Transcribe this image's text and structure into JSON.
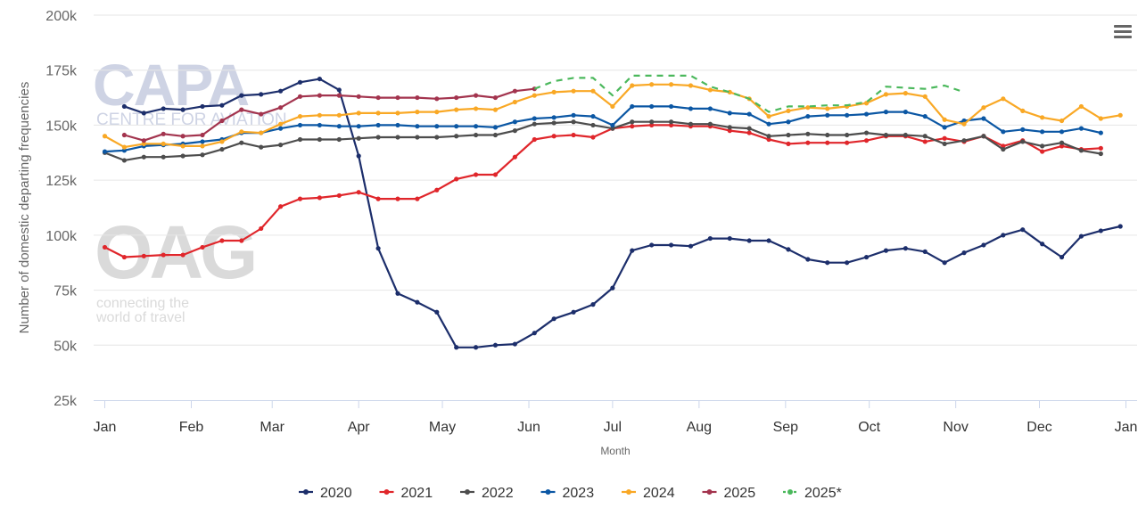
{
  "chart_data": {
    "type": "line",
    "xlabel": "Month",
    "ylabel": "Number of domestic departing frequencies",
    "watermarks": [
      "CAPA",
      "CENTRE FOR AVIATION",
      "OAG",
      "connecting the",
      "world of travel"
    ],
    "xlim": [
      -4,
      370
    ],
    "ylim": [
      25000,
      200000
    ],
    "xticks": [
      {
        "value": 0,
        "label": "Jan"
      },
      {
        "value": 31,
        "label": "Feb"
      },
      {
        "value": 60,
        "label": "Mar"
      },
      {
        "value": 91,
        "label": "Apr"
      },
      {
        "value": 121,
        "label": "May"
      },
      {
        "value": 152,
        "label": "Jun"
      },
      {
        "value": 182,
        "label": "Jul"
      },
      {
        "value": 213,
        "label": "Aug"
      },
      {
        "value": 244,
        "label": "Sep"
      },
      {
        "value": 274,
        "label": "Oct"
      },
      {
        "value": 305,
        "label": "Nov"
      },
      {
        "value": 335,
        "label": "Dec"
      },
      {
        "value": 366,
        "label": "Jan"
      }
    ],
    "yticks": [
      {
        "value": 25000,
        "label": "25k"
      },
      {
        "value": 50000,
        "label": "50k"
      },
      {
        "value": 75000,
        "label": "75k"
      },
      {
        "value": 100000,
        "label": "100k"
      },
      {
        "value": 125000,
        "label": "125k"
      },
      {
        "value": 150000,
        "label": "150k"
      },
      {
        "value": 175000,
        "label": "175k"
      },
      {
        "value": 200000,
        "label": "200k"
      }
    ],
    "grid": true,
    "legend": "bottom",
    "x": [
      0,
      7,
      14,
      21,
      28,
      35,
      42,
      49,
      56,
      63,
      70,
      77,
      84,
      91,
      98,
      105,
      112,
      119,
      126,
      133,
      140,
      147,
      154,
      161,
      168,
      175,
      182,
      189,
      196,
      203,
      210,
      217,
      224,
      231,
      238,
      245,
      252,
      259,
      266,
      273,
      280,
      287,
      294,
      301,
      308,
      315,
      322,
      329,
      336,
      343,
      350,
      357,
      364
    ],
    "series": [
      {
        "name": "2020",
        "color": "#1c2e6b",
        "dashed": false,
        "values": [
          null,
          158500,
          155500,
          157500,
          157000,
          158500,
          159000,
          163500,
          164000,
          165500,
          169500,
          171000,
          166000,
          136000,
          94000,
          73500,
          69500,
          65000,
          49000,
          49000,
          50000,
          50500,
          55500,
          62000,
          65000,
          68500,
          76000,
          93000,
          95500,
          95500,
          95000,
          98500,
          98500,
          97500,
          97500,
          93500,
          89000,
          87500,
          87500,
          90000,
          93000,
          94000,
          92500,
          87500,
          92000,
          95500,
          100000,
          102500,
          96000,
          90000,
          99500,
          102000,
          104000
        ]
      },
      {
        "name": "2021",
        "color": "#e0262b",
        "dashed": false,
        "values": [
          94500,
          90000,
          90500,
          91000,
          91000,
          94500,
          97500,
          97500,
          103000,
          113000,
          116500,
          117000,
          118000,
          119500,
          116500,
          116500,
          116500,
          120500,
          125500,
          127500,
          127500,
          135500,
          143500,
          145000,
          145500,
          144500,
          148500,
          149500,
          150000,
          150000,
          149500,
          149500,
          147500,
          146500,
          143500,
          141500,
          142000,
          142000,
          142000,
          143000,
          145000,
          145000,
          142500,
          144000,
          142500,
          145000,
          140500,
          143000,
          138000,
          140500,
          139000,
          139500,
          null
        ]
      },
      {
        "name": "2022",
        "color": "#4d4d4d",
        "dashed": false,
        "values": [
          137500,
          134000,
          135500,
          135500,
          136000,
          136500,
          139000,
          142000,
          140000,
          141000,
          143500,
          143500,
          143500,
          144000,
          144500,
          144500,
          144500,
          144500,
          145000,
          145500,
          145500,
          147500,
          150500,
          151000,
          151500,
          150000,
          148500,
          151500,
          151500,
          151500,
          150500,
          150500,
          149000,
          148500,
          145000,
          145500,
          146000,
          145500,
          145500,
          146500,
          145500,
          145500,
          145000,
          141500,
          143000,
          145000,
          139000,
          142500,
          140500,
          142000,
          138500,
          137000,
          null
        ]
      },
      {
        "name": "2023",
        "color": "#0b57a4",
        "dashed": false,
        "values": [
          138000,
          138500,
          140500,
          141000,
          141500,
          142500,
          143500,
          146500,
          146500,
          148500,
          150000,
          150000,
          149500,
          149500,
          150000,
          150000,
          149500,
          149500,
          149500,
          149500,
          149000,
          151500,
          153000,
          153500,
          154500,
          154000,
          150000,
          158500,
          158500,
          158500,
          157500,
          157500,
          155500,
          155000,
          150500,
          151500,
          154000,
          154500,
          154500,
          155000,
          156000,
          156000,
          154000,
          149000,
          152000,
          153000,
          147000,
          148000,
          147000,
          147000,
          148500,
          146500,
          null
        ]
      },
      {
        "name": "2024",
        "color": "#f9a825",
        "dashed": false,
        "values": [
          145000,
          140000,
          141500,
          141500,
          140500,
          140500,
          142500,
          147000,
          146500,
          150500,
          154000,
          154500,
          154500,
          155500,
          155500,
          155500,
          156000,
          156000,
          157000,
          157500,
          157000,
          160500,
          163500,
          165000,
          165500,
          165500,
          158500,
          168000,
          168500,
          168500,
          168000,
          166000,
          165000,
          162000,
          154000,
          156500,
          158000,
          157500,
          158500,
          160000,
          164000,
          164500,
          163000,
          152500,
          150500,
          158000,
          162000,
          156500,
          153500,
          152000,
          158500,
          153000,
          154500
        ]
      },
      {
        "name": "2025",
        "color": "#a3344e",
        "dashed": false,
        "values": [
          null,
          145500,
          143000,
          146000,
          145000,
          145500,
          152000,
          157000,
          155000,
          158000,
          163000,
          163500,
          163500,
          163000,
          162500,
          162500,
          162500,
          162000,
          162500,
          163500,
          162500,
          165500,
          166500,
          null,
          null,
          null,
          null,
          null,
          null,
          null,
          null,
          null,
          null,
          null,
          null,
          null,
          null,
          null,
          null,
          null,
          null,
          null,
          null,
          null,
          null,
          null,
          null,
          null,
          null,
          null,
          null,
          null,
          null
        ]
      },
      {
        "name": "2025*",
        "color": "#4bb85c",
        "dashed": true,
        "values": [
          null,
          null,
          null,
          null,
          null,
          null,
          null,
          null,
          null,
          null,
          null,
          null,
          null,
          null,
          null,
          null,
          null,
          null,
          null,
          null,
          null,
          null,
          166500,
          170000,
          171500,
          171500,
          163500,
          172500,
          172500,
          172500,
          172500,
          167500,
          165000,
          162000,
          156000,
          158500,
          158500,
          159000,
          159000,
          160500,
          167500,
          167000,
          166500,
          168000,
          165000,
          null,
          null,
          null,
          null,
          null,
          null,
          null,
          null
        ]
      }
    ]
  }
}
